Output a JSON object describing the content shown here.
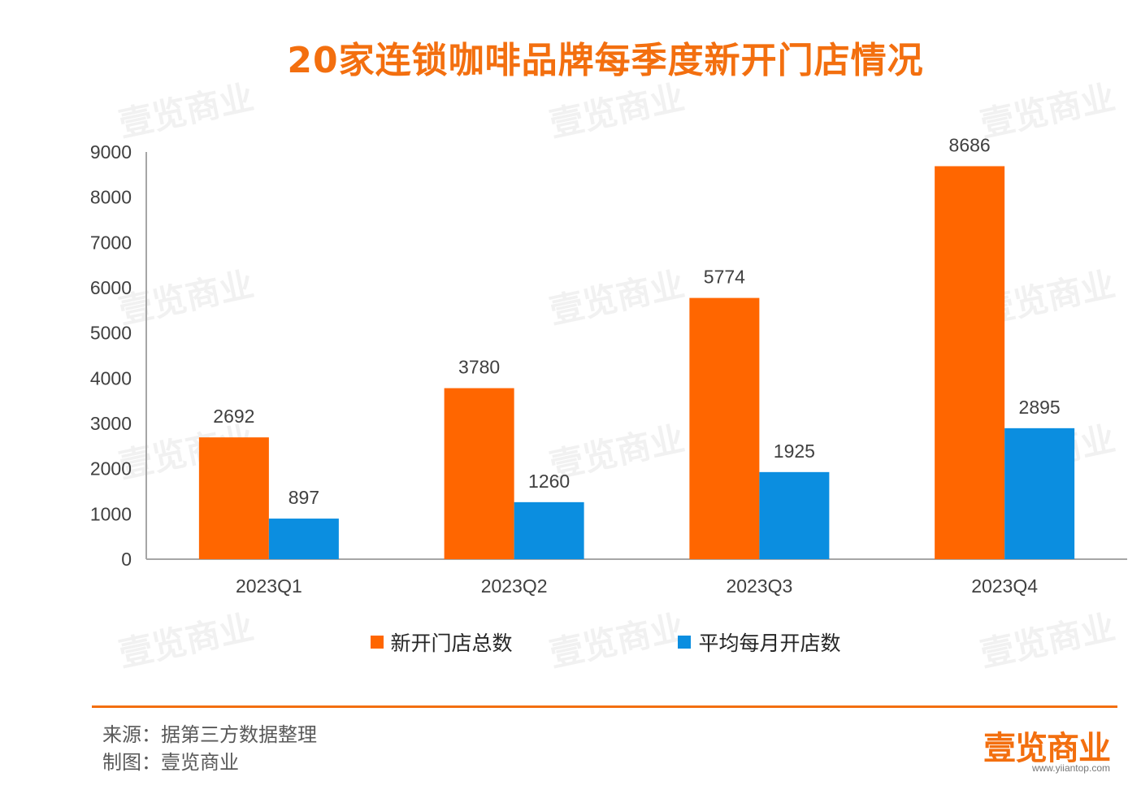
{
  "title": "20家连锁咖啡品牌每季度新开门店情况",
  "chart_data": {
    "type": "bar",
    "categories": [
      "2023Q1",
      "2023Q2",
      "2023Q3",
      "2023Q4"
    ],
    "series": [
      {
        "name": "新开门店总数",
        "values": [
          2692,
          3780,
          5774,
          8686
        ],
        "color": "#ff6600"
      },
      {
        "name": "平均每月开店数",
        "values": [
          897,
          1260,
          1925,
          2895
        ],
        "color": "#0b8ee0"
      }
    ],
    "ylim": [
      0,
      9000
    ],
    "yticks": [
      0,
      1000,
      2000,
      3000,
      4000,
      5000,
      6000,
      7000,
      8000,
      9000
    ],
    "grid": false,
    "legend_position": "bottom"
  },
  "watermark": "壹览商业",
  "footer": {
    "source": "来源：据第三方数据整理",
    "maker": "制图：壹览商业",
    "brand": "壹览商业",
    "brand_sub": "www.yiiantop.com"
  }
}
